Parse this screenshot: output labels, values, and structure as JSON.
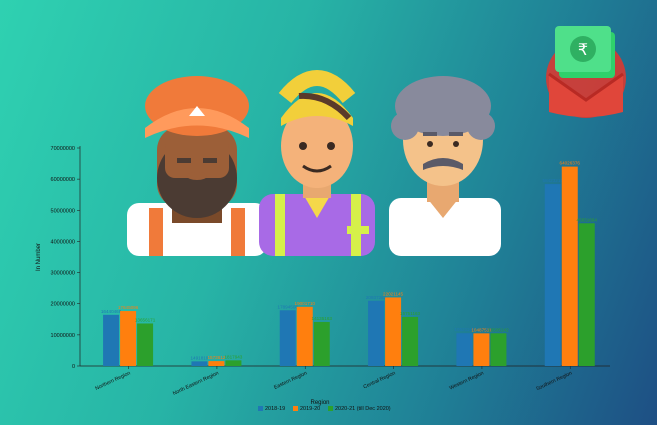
{
  "chart_data": {
    "type": "bar",
    "xlabel": "Region",
    "ylabel": "In Number",
    "ylim": [
      0,
      70000000
    ],
    "yticks": [
      0,
      10000000,
      20000000,
      30000000,
      40000000,
      50000000,
      60000000,
      70000000
    ],
    "categories": [
      "Northern Region",
      "North Eastern Region",
      "Eastern Region",
      "Central Region",
      "Western Region",
      "Southern Region"
    ],
    "series": [
      {
        "name": "2018-19",
        "color": "#1f77b4",
        "values": [
          16440468,
          1491819,
          17894508,
          20937282,
          10521167,
          58423217
        ]
      },
      {
        "name": "2019-20",
        "color": "#ff7f0e",
        "values": [
          17645096,
          1573612,
          19001710,
          22021145,
          10487511,
          64026376
        ]
      },
      {
        "name": "2020-21 (till Dec 2020)",
        "color": "#2ca02c",
        "values": [
          13656171,
          1817943,
          14135163,
          15751163,
          10505142,
          45831664
        ]
      }
    ],
    "legend_position": "bottom"
  },
  "decorations": {
    "people_illustration": "three-men-illustration",
    "money_icon": "rupee-envelope-icon"
  }
}
